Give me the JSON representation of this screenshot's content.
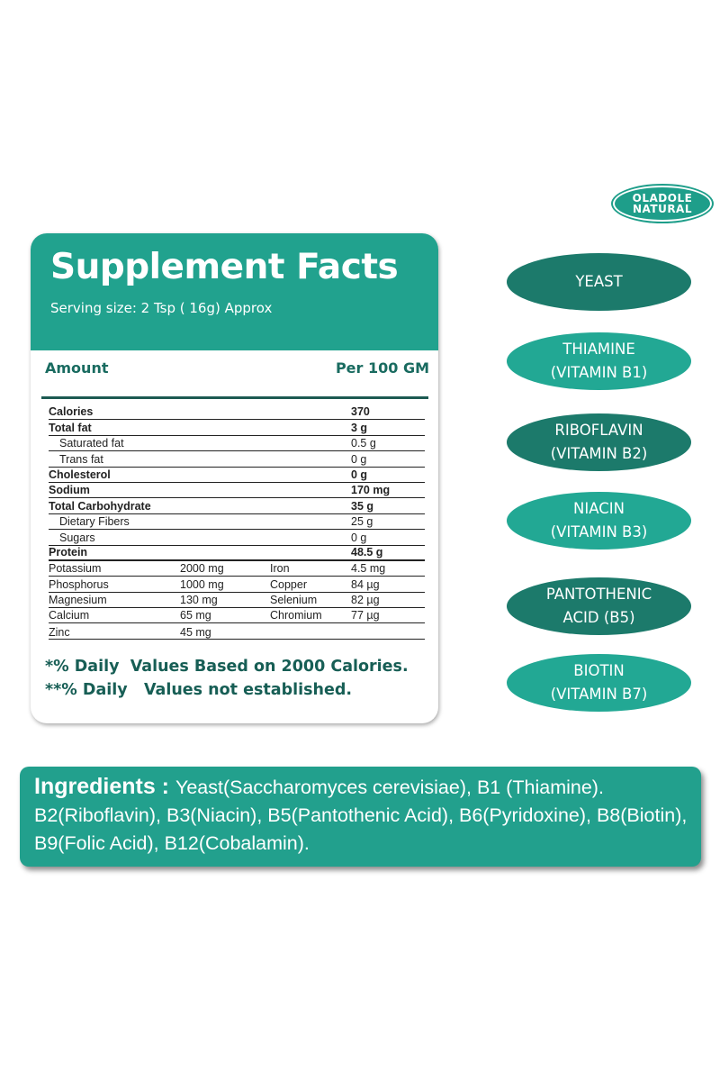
{
  "brand": {
    "line1": "OLADOLE",
    "line2": "NATURAL",
    "color": "#1e9e8a"
  },
  "facts": {
    "title": "Supplement Facts",
    "serving": "Serving size: 2 Tsp ( 16g) Approx",
    "amount_label": "Amount",
    "per_label": "Per 100 GM",
    "header_color": "#21a28e",
    "rows": [
      {
        "label": "Calories",
        "value": "370"
      },
      {
        "label": "Total fat",
        "value": "3 g"
      },
      {
        "label": "Saturated fat",
        "value": "0.5 g"
      },
      {
        "label": "Trans fat",
        "value": "0 g"
      },
      {
        "label": "Cholesterol",
        "value": "0 g"
      },
      {
        "label": "Sodium",
        "value": "170 mg"
      },
      {
        "label": "Total Carbohydrate",
        "value": "35 g"
      },
      {
        "label": "Dietary Fibers",
        "value": "25 g"
      },
      {
        "label": "Sugars",
        "value": "0 g"
      },
      {
        "label": "Protein",
        "value": "48.5 g"
      }
    ],
    "minerals": [
      {
        "name1": "Potassium",
        "val1": "2000 mg",
        "name2": "Iron",
        "val2": "4.5 mg"
      },
      {
        "name1": "Phosphorus",
        "val1": "1000 mg",
        "name2": "Copper",
        "val2": "84 µg"
      },
      {
        "name1": "Magnesium",
        "val1": "130 mg",
        "name2": "Selenium",
        "val2": "82 µg"
      },
      {
        "name1": "Calcium",
        "val1": "65 mg",
        "name2": "Chromium",
        "val2": "77 µg"
      },
      {
        "name1": "Zinc",
        "val1": "45 mg"
      }
    ],
    "footnote1": "*% Daily  Values Based on 2000 Calories.",
    "footnote2": "**% Daily   Values not established."
  },
  "pills": [
    {
      "line1": "YEAST",
      "line2": ""
    },
    {
      "line1": "THIAMINE",
      "line2": "(VITAMIN B1)"
    },
    {
      "line1": "RIBOFLAVIN",
      "line2": "(VITAMIN B2)"
    },
    {
      "line1": "NIACIN",
      "line2": "(VITAMIN B3)"
    },
    {
      "line1": "PANTOTHENIC",
      "line2": "ACID (B5)"
    },
    {
      "line1": "BIOTIN",
      "line2": "(VITAMIN B7)"
    }
  ],
  "pill_colors": {
    "dark": "#1c7a6b",
    "light": "#22a894"
  },
  "ingredients": {
    "title": "Ingredients : ",
    "text": "Yeast(Saccharomyces cerevisiae), B1 (Thiamine). B2(Riboflavin), B3(Niacin), B5(Pantothenic Acid), B6(Pyridoxine), B8(Biotin), B9(Folic Acid), B12(Cobalamin)."
  }
}
